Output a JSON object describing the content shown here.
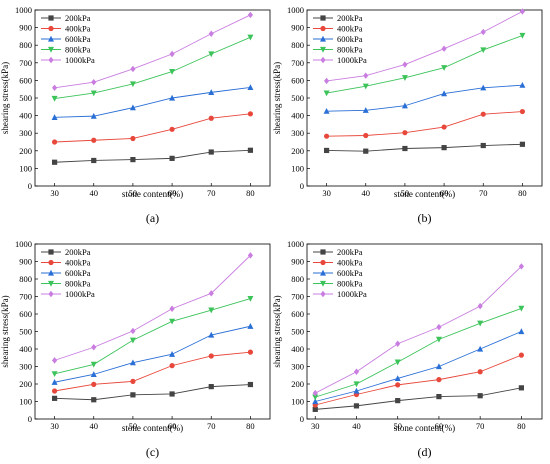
{
  "colors": {
    "200kPa": "#444444",
    "400kPa": "#e8483b",
    "600kPa": "#2a6fd6",
    "800kPa": "#3cc35a",
    "1000kPa": "#c97de0"
  },
  "markers": [
    "square",
    "circle",
    "triangle-up",
    "triangle-down",
    "diamond"
  ],
  "chart_data": [
    {
      "type": "line",
      "panel_label": "(a)",
      "xlabel": "stone content(%)",
      "ylabel": "shearing stress(kPa)",
      "xlim": [
        25,
        85
      ],
      "ylim": [
        0,
        1000
      ],
      "x_ticks": [
        30,
        40,
        50,
        60,
        70,
        80
      ],
      "y_ticks": [
        0,
        100,
        200,
        300,
        400,
        500,
        600,
        700,
        800,
        900,
        1000
      ],
      "legend_position": "top-left",
      "x": [
        30,
        40,
        50,
        60,
        70,
        80
      ],
      "series": [
        {
          "name": "200kPa",
          "values": [
            135,
            145,
            150,
            157,
            193,
            203
          ]
        },
        {
          "name": "400kPa",
          "values": [
            250,
            260,
            270,
            322,
            385,
            410
          ]
        },
        {
          "name": "600kPa",
          "values": [
            390,
            397,
            445,
            500,
            532,
            560
          ]
        },
        {
          "name": "800kPa",
          "values": [
            497,
            528,
            580,
            650,
            750,
            845
          ]
        },
        {
          "name": "1000kPa",
          "values": [
            558,
            590,
            665,
            750,
            865,
            972
          ]
        }
      ]
    },
    {
      "type": "line",
      "panel_label": "(b)",
      "xlabel": "stone content(%)",
      "ylabel": "shearing stress(kPa)",
      "xlim": [
        25,
        85
      ],
      "ylim": [
        0,
        1000
      ],
      "x_ticks": [
        30,
        40,
        50,
        60,
        70,
        80
      ],
      "y_ticks": [
        0,
        100,
        200,
        300,
        400,
        500,
        600,
        700,
        800,
        900,
        1000
      ],
      "legend_position": "top-left",
      "x": [
        30,
        40,
        50,
        60,
        70,
        80
      ],
      "series": [
        {
          "name": "200kPa",
          "values": [
            202,
            198,
            213,
            218,
            230,
            237
          ]
        },
        {
          "name": "400kPa",
          "values": [
            283,
            287,
            303,
            335,
            408,
            423
          ]
        },
        {
          "name": "600kPa",
          "values": [
            425,
            430,
            456,
            525,
            558,
            573
          ]
        },
        {
          "name": "800kPa",
          "values": [
            528,
            567,
            615,
            672,
            773,
            855
          ]
        },
        {
          "name": "1000kPa",
          "values": [
            597,
            627,
            690,
            780,
            875,
            992
          ]
        }
      ]
    },
    {
      "type": "line",
      "panel_label": "(c)",
      "xlabel": "stone content(%)",
      "ylabel": "shearing stress(kPa)",
      "xlim": [
        25,
        85
      ],
      "ylim": [
        0,
        1000
      ],
      "x_ticks": [
        30,
        40,
        50,
        60,
        70,
        80
      ],
      "y_ticks": [
        0,
        100,
        200,
        300,
        400,
        500,
        600,
        700,
        800,
        900,
        1000
      ],
      "legend_position": "top-left",
      "x": [
        30,
        40,
        50,
        60,
        70,
        80
      ],
      "series": [
        {
          "name": "200kPa",
          "values": [
            118,
            110,
            138,
            143,
            185,
            197
          ]
        },
        {
          "name": "400kPa",
          "values": [
            160,
            198,
            215,
            305,
            360,
            382
          ]
        },
        {
          "name": "600kPa",
          "values": [
            210,
            255,
            322,
            370,
            480,
            530
          ]
        },
        {
          "name": "800kPa",
          "values": [
            258,
            312,
            450,
            558,
            622,
            688
          ]
        },
        {
          "name": "1000kPa",
          "values": [
            335,
            410,
            503,
            630,
            718,
            935
          ]
        }
      ]
    },
    {
      "type": "line",
      "panel_label": "(d)",
      "xlabel": "stone content(%)",
      "ylabel": "shearing stress(kPa)",
      "xlim": [
        28,
        85
      ],
      "ylim": [
        0,
        1000
      ],
      "x_ticks": [
        30,
        40,
        50,
        60,
        70,
        80
      ],
      "y_ticks": [
        0,
        100,
        200,
        300,
        400,
        500,
        600,
        700,
        800,
        900,
        1000
      ],
      "legend_position": "top-left",
      "x": [
        30,
        40,
        50,
        60,
        70,
        80
      ],
      "series": [
        {
          "name": "200kPa",
          "values": [
            55,
            75,
            105,
            128,
            133,
            178
          ]
        },
        {
          "name": "400kPa",
          "values": [
            80,
            140,
            195,
            225,
            270,
            365
          ]
        },
        {
          "name": "600kPa",
          "values": [
            100,
            160,
            232,
            300,
            400,
            500
          ]
        },
        {
          "name": "800kPa",
          "values": [
            125,
            200,
            325,
            455,
            547,
            632
          ]
        },
        {
          "name": "1000kPa",
          "values": [
            148,
            270,
            430,
            525,
            645,
            872
          ]
        }
      ]
    }
  ]
}
